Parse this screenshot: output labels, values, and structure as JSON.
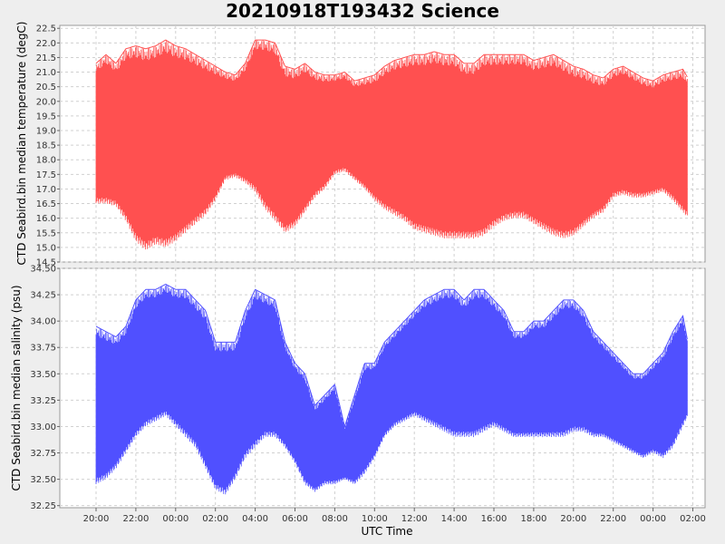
{
  "chart_data": [
    {
      "type": "line",
      "title": "20210918T193432 Science",
      "ylabel": "CTD Seabird.bin median temperature (degC)",
      "xlabel": "",
      "ylim": [
        14.5,
        22.6
      ],
      "yticks": [
        22.5,
        22.0,
        21.5,
        21.0,
        20.5,
        20.0,
        19.5,
        19.0,
        18.5,
        18.0,
        17.5,
        17.0,
        16.5,
        16.0,
        15.5,
        15.0,
        14.5
      ],
      "color": "#ff5050",
      "series": [
        {
          "x": [
            -4.0,
            -3.5,
            -3.0,
            -2.5,
            -2.0,
            -1.5,
            -1.0,
            -0.5,
            0.0,
            0.5,
            1.0,
            1.5,
            2.0,
            2.5,
            3.0,
            3.5,
            4.0,
            4.5,
            5.0,
            5.5,
            6.0,
            6.5,
            7.0,
            7.5,
            8.0,
            8.5,
            9.0,
            9.5,
            10.0,
            10.5,
            11.0,
            11.5,
            12.0,
            12.5,
            13.0,
            13.5,
            14.0,
            14.5,
            15.0,
            15.5,
            16.0,
            16.5,
            17.0,
            17.5,
            18.0,
            18.5,
            19.0,
            19.5,
            20.0,
            20.5,
            21.0,
            21.5,
            22.0,
            22.5,
            23.0,
            23.5,
            24.0,
            24.5,
            25.0,
            25.5,
            25.75
          ],
          "top": [
            21.3,
            21.6,
            21.3,
            21.8,
            21.9,
            21.8,
            21.9,
            22.1,
            21.9,
            21.8,
            21.6,
            21.4,
            21.2,
            21.0,
            20.9,
            21.3,
            22.1,
            22.1,
            22.0,
            21.2,
            21.1,
            21.3,
            21.0,
            20.9,
            20.9,
            21.0,
            20.7,
            20.8,
            20.9,
            21.2,
            21.4,
            21.5,
            21.6,
            21.6,
            21.7,
            21.6,
            21.6,
            21.3,
            21.3,
            21.6,
            21.6,
            21.6,
            21.6,
            21.6,
            21.4,
            21.5,
            21.6,
            21.4,
            21.2,
            21.1,
            20.9,
            20.8,
            21.1,
            21.2,
            21.0,
            20.8,
            20.7,
            20.9,
            21.0,
            21.1,
            20.8
          ],
          "bottom": [
            16.5,
            16.5,
            16.4,
            15.9,
            15.2,
            14.9,
            15.1,
            15.0,
            15.2,
            15.5,
            15.8,
            16.1,
            16.6,
            17.3,
            17.4,
            17.2,
            16.9,
            16.3,
            15.9,
            15.5,
            15.7,
            16.2,
            16.7,
            17.0,
            17.5,
            17.6,
            17.3,
            17.0,
            16.6,
            16.3,
            16.1,
            15.9,
            15.6,
            15.5,
            15.4,
            15.3,
            15.3,
            15.3,
            15.3,
            15.4,
            15.7,
            15.9,
            16.0,
            16.0,
            15.8,
            15.6,
            15.4,
            15.3,
            15.4,
            15.7,
            16.0,
            16.2,
            16.7,
            16.8,
            16.7,
            16.7,
            16.8,
            16.9,
            16.6,
            16.2,
            16.0
          ]
        }
      ]
    },
    {
      "type": "line",
      "title": "",
      "ylabel": "CTD Seabird.bin median salinity (psu)",
      "xlabel": "UTC Time",
      "ylim": [
        32.23,
        34.5
      ],
      "yticks": [
        34.5,
        34.25,
        34.0,
        33.75,
        33.5,
        33.25,
        33.0,
        32.75,
        32.5,
        32.25
      ],
      "color": "#5050ff",
      "series": [
        {
          "x": [
            -4.0,
            -3.5,
            -3.0,
            -2.5,
            -2.0,
            -1.5,
            -1.0,
            -0.5,
            0.0,
            0.5,
            1.0,
            1.5,
            2.0,
            2.5,
            3.0,
            3.5,
            4.0,
            4.5,
            5.0,
            5.5,
            6.0,
            6.5,
            7.0,
            7.5,
            8.0,
            8.5,
            9.0,
            9.5,
            10.0,
            10.5,
            11.0,
            11.5,
            12.0,
            12.5,
            13.0,
            13.5,
            14.0,
            14.5,
            15.0,
            15.5,
            16.0,
            16.5,
            17.0,
            17.5,
            18.0,
            18.5,
            19.0,
            19.5,
            20.0,
            20.5,
            21.0,
            21.5,
            22.0,
            22.5,
            23.0,
            23.5,
            24.0,
            24.5,
            25.0,
            25.5,
            25.75
          ],
          "top": [
            33.95,
            33.9,
            33.85,
            33.95,
            34.2,
            34.3,
            34.3,
            34.35,
            34.3,
            34.3,
            34.2,
            34.1,
            33.8,
            33.8,
            33.8,
            34.1,
            34.3,
            34.25,
            34.2,
            33.8,
            33.6,
            33.5,
            33.2,
            33.3,
            33.4,
            33.0,
            33.3,
            33.6,
            33.6,
            33.8,
            33.9,
            34.0,
            34.1,
            34.2,
            34.25,
            34.3,
            34.3,
            34.2,
            34.3,
            34.3,
            34.2,
            34.1,
            33.9,
            33.9,
            34.0,
            34.0,
            34.1,
            34.2,
            34.2,
            34.1,
            33.9,
            33.8,
            33.7,
            33.6,
            33.5,
            33.5,
            33.6,
            33.7,
            33.9,
            34.05,
            33.8
          ],
          "bottom": [
            32.45,
            32.5,
            32.6,
            32.75,
            32.9,
            33.0,
            33.05,
            33.1,
            33.0,
            32.9,
            32.8,
            32.6,
            32.4,
            32.35,
            32.5,
            32.7,
            32.8,
            32.9,
            32.9,
            32.8,
            32.65,
            32.45,
            32.38,
            32.45,
            32.45,
            32.5,
            32.45,
            32.55,
            32.7,
            32.9,
            33.0,
            33.05,
            33.1,
            33.05,
            33.0,
            32.95,
            32.9,
            32.9,
            32.9,
            32.95,
            33.0,
            32.95,
            32.9,
            32.9,
            32.9,
            32.9,
            32.9,
            32.9,
            32.95,
            32.95,
            32.9,
            32.9,
            32.85,
            32.8,
            32.75,
            32.7,
            32.75,
            32.7,
            32.8,
            33.0,
            33.1
          ]
        }
      ]
    }
  ],
  "x_axis": {
    "tick_labels": [
      "20:00",
      "22:00",
      "00:00",
      "02:00",
      "04:00",
      "06:00",
      "08:00",
      "10:00",
      "12:00",
      "14:00",
      "16:00",
      "18:00",
      "20:00",
      "22:00",
      "00:00",
      "02:00"
    ],
    "tick_hours": [
      -4,
      -2,
      0,
      2,
      4,
      6,
      8,
      10,
      12,
      14,
      16,
      18,
      20,
      22,
      24,
      26
    ]
  }
}
